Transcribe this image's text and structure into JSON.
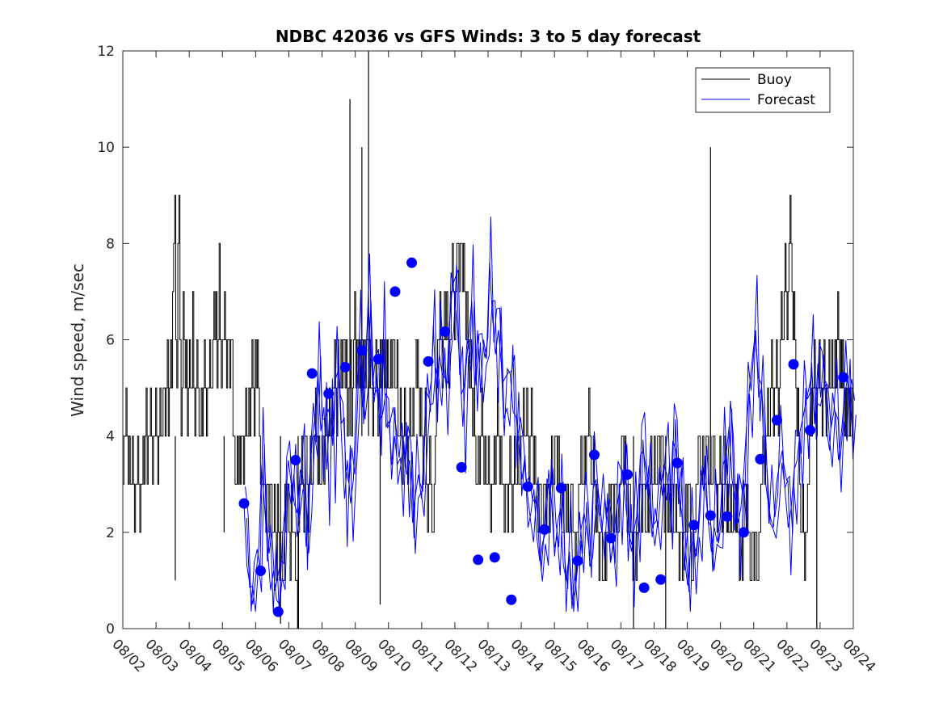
{
  "chart_data": {
    "type": "line",
    "title": "NDBC 42036 vs GFS Winds: 3 to 5 day forecast",
    "xlabel": "",
    "ylabel": "Wind speed, m/sec",
    "xlim": [
      0,
      22
    ],
    "ylim": [
      0,
      12
    ],
    "yticks": [
      0,
      2,
      4,
      6,
      8,
      10,
      12
    ],
    "x_tick_labels": [
      "08/02",
      "08/03",
      "08/04",
      "08/05",
      "08/06",
      "08/07",
      "08/08",
      "08/09",
      "08/10",
      "08/11",
      "08/12",
      "08/13",
      "08/14",
      "08/15",
      "08/16",
      "08/17",
      "08/18",
      "08/19",
      "08/20",
      "08/21",
      "08/22",
      "08/23",
      "08/24"
    ],
    "legend": {
      "position": "top-right",
      "entries": [
        "Buoy",
        "Forecast"
      ]
    },
    "colors": {
      "buoy": "#000000",
      "forecast": "#0000ff",
      "axis": "#262626"
    },
    "buoy_segments": [
      {
        "start": 0.0,
        "values": [
          3,
          4,
          4,
          5,
          4,
          3,
          4,
          3,
          3,
          4,
          3,
          2,
          3,
          3,
          4,
          3,
          2,
          3,
          3,
          4,
          3,
          4,
          5,
          3,
          4,
          4,
          5,
          4,
          3,
          4,
          4,
          5,
          4,
          3,
          4,
          5,
          4,
          4,
          5,
          5,
          4,
          5,
          6,
          4,
          5,
          6,
          5,
          7,
          8,
          9,
          6,
          5,
          8,
          9,
          6,
          4,
          5,
          7,
          6,
          5,
          6,
          4,
          5,
          6,
          5,
          5,
          7,
          5,
          4,
          5,
          6,
          5,
          4,
          4,
          5,
          4,
          5,
          6,
          5,
          4,
          5,
          5,
          6,
          5,
          5,
          6,
          7,
          6,
          7,
          5,
          6,
          8,
          6,
          5,
          6,
          6,
          7,
          6,
          5,
          6,
          6,
          5,
          6,
          6,
          4,
          4,
          3,
          3,
          4,
          3,
          4,
          3,
          4,
          4,
          3,
          4,
          5,
          4,
          4,
          5,
          4,
          5,
          6,
          5,
          4,
          6,
          5,
          6,
          5,
          4,
          3,
          3,
          3,
          3,
          3,
          2,
          3,
          3,
          2,
          3,
          3,
          2,
          2,
          3,
          2,
          1,
          3,
          2,
          1,
          2,
          2,
          1,
          1,
          3,
          2,
          3,
          3,
          2,
          1,
          3,
          2,
          2,
          2,
          1,
          1,
          0,
          2,
          3,
          3,
          4,
          3,
          2,
          4,
          4,
          3,
          2,
          3,
          4,
          3,
          3,
          4,
          4,
          5,
          4,
          3,
          4,
          3,
          3,
          4,
          4,
          3,
          4,
          5,
          4,
          4,
          5,
          4,
          4,
          5,
          5,
          6,
          5,
          4,
          6,
          5,
          5,
          6,
          5,
          6,
          6,
          5,
          6,
          4,
          5,
          5,
          6,
          4,
          5,
          6,
          7,
          5,
          6,
          5,
          6,
          5,
          6,
          6,
          5,
          6,
          5,
          6,
          6,
          5,
          6,
          5,
          5,
          4,
          5,
          5,
          6,
          5,
          4,
          5,
          6,
          5,
          6,
          6,
          5,
          6,
          5,
          6,
          5,
          5,
          6,
          5,
          6,
          6,
          5,
          5,
          6,
          4,
          4,
          5,
          4,
          3,
          4,
          5,
          4,
          4,
          3,
          4,
          5,
          4,
          4,
          5,
          4
        ]
      },
      {
        "start": 8.8,
        "values": [
          6,
          5,
          6,
          5,
          4,
          5,
          4,
          3,
          4,
          5,
          3,
          2,
          3,
          4,
          3,
          2,
          2,
          3,
          4,
          5,
          6,
          6,
          7,
          6,
          5,
          6,
          7,
          6,
          7,
          6,
          5,
          6,
          7,
          8,
          7,
          6,
          7,
          8,
          8,
          7,
          8,
          8,
          7,
          8,
          7,
          6,
          7,
          6,
          5,
          6,
          5,
          4,
          5,
          4,
          3,
          3,
          4,
          3,
          4,
          5,
          4,
          3,
          4,
          3,
          3,
          4,
          3,
          2,
          3,
          3,
          4,
          3,
          4,
          5,
          4,
          3,
          4,
          3,
          3,
          2,
          3,
          3,
          2,
          3,
          4,
          3,
          2,
          3,
          4,
          3,
          3,
          4,
          3,
          3,
          4,
          4,
          5,
          4,
          4,
          5,
          4,
          3,
          4,
          5,
          4,
          3,
          4,
          3,
          3,
          2,
          3,
          3,
          2,
          2,
          3,
          3,
          2,
          3,
          3,
          2,
          3,
          4,
          3,
          3,
          4,
          4,
          3,
          4,
          3,
          3,
          2,
          2,
          3,
          3,
          2,
          3,
          2,
          2,
          3,
          3,
          2,
          2,
          1,
          2,
          2,
          3,
          3,
          4,
          3,
          3,
          4,
          3,
          4,
          4,
          5,
          4,
          3,
          3,
          4,
          3,
          2,
          3,
          2,
          1,
          2,
          2,
          1,
          1,
          2,
          1,
          2,
          2,
          3,
          2,
          3,
          3,
          2,
          3,
          3,
          2,
          2,
          3,
          3,
          4,
          4,
          3,
          4,
          3,
          2,
          3,
          3,
          2,
          2,
          1,
          2,
          2,
          1,
          2,
          2,
          3,
          3,
          2,
          3,
          3,
          2,
          2,
          3,
          2,
          3,
          4,
          3,
          3,
          4,
          3,
          3,
          4,
          4,
          3,
          4,
          4,
          3,
          2,
          3,
          3,
          2,
          3,
          2,
          3,
          3,
          2,
          2,
          3,
          2,
          2,
          1,
          2,
          2,
          1,
          2,
          2,
          3,
          2,
          3,
          3,
          2,
          1,
          1,
          2,
          2,
          3,
          3,
          4,
          4,
          3,
          3,
          4,
          3,
          3,
          4
        ]
      },
      {
        "start": 17.6,
        "values": [
          4,
          3,
          3,
          4,
          3,
          3,
          4,
          4,
          3,
          3,
          2,
          3,
          3,
          4,
          3,
          2,
          3,
          3,
          4,
          3,
          2,
          3,
          2,
          2,
          3,
          2,
          2,
          3,
          3,
          2,
          3,
          2,
          2,
          1,
          2,
          2,
          1,
          2,
          3,
          3,
          2,
          3,
          2,
          2,
          1,
          1,
          2,
          2,
          1,
          2,
          2,
          1,
          1,
          2,
          2,
          3,
          3,
          4,
          4,
          3,
          4,
          4,
          5,
          4,
          4,
          5,
          6,
          5,
          4,
          5,
          5,
          6,
          5,
          4,
          5,
          6,
          7,
          6,
          6,
          7,
          8,
          7,
          6,
          7,
          8,
          9,
          8,
          7,
          6,
          7,
          6,
          5,
          4,
          5,
          4,
          3,
          2,
          2,
          3,
          2,
          1,
          2,
          2,
          3,
          3,
          4,
          5,
          4,
          5,
          5,
          6,
          5,
          4,
          5,
          5,
          6,
          5,
          5,
          4,
          5,
          6,
          5,
          4,
          5,
          5,
          6,
          5,
          5,
          6,
          5,
          5,
          6,
          5,
          6,
          7,
          6,
          5,
          6,
          5,
          6,
          5,
          4,
          5,
          4,
          5,
          5,
          4,
          5,
          5,
          4
        ]
      }
    ],
    "buoy_spikes": [
      {
        "x": 1.58,
        "y": 1.0
      },
      {
        "x": 3.05,
        "y": 2.0
      },
      {
        "x": 4.75,
        "y": 0.1
      },
      {
        "x": 5.28,
        "y": 0.0
      },
      {
        "x": 6.84,
        "y": 11.0
      },
      {
        "x": 7.2,
        "y": 10.0
      },
      {
        "x": 7.4,
        "y": 12.0
      },
      {
        "x": 7.75,
        "y": 0.5
      },
      {
        "x": 15.38,
        "y": 0.0
      },
      {
        "x": 16.35,
        "y": 0.0
      },
      {
        "x": 17.7,
        "y": 10.0
      },
      {
        "x": 20.9,
        "y": 0.0
      }
    ],
    "forecast_runs": [
      {
        "x0": 3.65,
        "values": [
          2.6,
          1.3,
          0.9,
          0.5,
          1.1,
          1.7,
          3.4,
          2.5,
          1.6,
          0.8,
          1.2,
          0.6,
          0.5,
          1.9,
          2.6,
          3.5,
          3.0,
          2.6,
          2.4,
          3.3,
          3.1,
          1.7,
          3.0,
          3.9,
          4.4,
          5.3,
          4.1,
          4.6,
          3.3,
          4.6,
          3.8,
          5.2,
          5.4,
          3.9,
          2.7,
          3.5,
          2.6,
          3.1,
          4.9,
          5.8,
          4.6,
          5.4,
          6.8,
          5.6,
          4.7,
          5.3,
          4.0,
          6.0,
          4.2,
          4.3,
          3.4,
          4.6,
          3.0,
          3.4,
          3.9,
          3.2,
          3.5,
          2.2,
          2.8,
          3.2,
          2.7,
          3.8,
          5.3,
          4.5,
          6.3,
          4.8,
          5.7,
          5.3,
          5.2,
          5.1,
          7.4,
          7.0,
          6.4,
          5.4,
          4.2,
          5.4,
          6.1,
          6.8,
          5.0,
          6.2,
          4.9,
          6.0,
          5.6,
          7.6,
          6.5,
          5.7,
          6.2,
          5.5,
          4.0,
          5.4,
          5.3,
          4.5,
          4.4,
          3.8,
          3.1,
          3.6,
          2.1,
          2.4,
          2.9,
          1.9,
          1.4,
          1.8,
          2.0,
          3.3,
          2.6,
          1.5,
          2.2,
          2.5,
          1.3,
          1.0,
          1.6,
          0.6,
          0.8,
          1.4,
          2.1,
          2.4,
          2.0,
          1.5,
          2.9,
          3.1,
          2.4,
          2.0,
          2.7,
          2.2,
          1.4,
          1.9,
          2.5,
          2.9,
          3.3,
          2.6,
          2.0,
          1.6,
          2.1,
          2.4,
          3.6,
          3.7,
          3.3,
          2.8,
          1.9,
          2.5,
          2.1,
          3.0,
          3.4,
          3.2,
          2.6,
          3.9,
          3.7,
          2.8,
          2.4,
          1.4,
          0.9,
          1.7,
          1.8,
          1.5,
          2.3,
          3.4,
          2.9,
          2.2,
          1.6,
          2.1,
          1.8,
          2.3,
          3.4,
          3.6,
          4.2,
          3.1,
          2.7,
          2.2,
          2.5,
          3.3,
          4.3,
          5.1,
          5.7,
          6.2,
          4.8,
          5.0,
          3.2,
          2.7,
          2.3,
          2.1,
          3.0,
          3.4,
          3.7,
          2.8,
          2.1,
          2.5,
          3.3,
          3.5,
          4.1,
          4.4,
          4.7,
          5.0,
          5.3,
          4.3,
          5.5,
          4.8,
          5.7,
          4.1,
          3.7,
          4.9,
          4.4,
          3.5,
          4.1,
          4.8,
          5.2,
          4.6,
          3.9
        ]
      }
    ],
    "forecast_scatter": [
      {
        "x": 3.65,
        "y": 2.6
      },
      {
        "x": 4.15,
        "y": 1.2
      },
      {
        "x": 4.68,
        "y": 0.35
      },
      {
        "x": 5.2,
        "y": 3.5
      },
      {
        "x": 5.7,
        "y": 5.3
      },
      {
        "x": 6.2,
        "y": 4.88
      },
      {
        "x": 6.7,
        "y": 5.43
      },
      {
        "x": 7.2,
        "y": 5.78
      },
      {
        "x": 7.7,
        "y": 5.6
      },
      {
        "x": 8.2,
        "y": 7.0
      },
      {
        "x": 8.7,
        "y": 7.6
      },
      {
        "x": 9.2,
        "y": 5.55
      },
      {
        "x": 9.7,
        "y": 6.17
      },
      {
        "x": 10.2,
        "y": 3.35
      },
      {
        "x": 10.7,
        "y": 1.43
      },
      {
        "x": 11.2,
        "y": 1.48
      },
      {
        "x": 11.7,
        "y": 0.6
      },
      {
        "x": 12.2,
        "y": 2.95
      },
      {
        "x": 12.7,
        "y": 2.06
      },
      {
        "x": 13.2,
        "y": 2.92
      },
      {
        "x": 13.7,
        "y": 1.41
      },
      {
        "x": 14.2,
        "y": 3.61
      },
      {
        "x": 14.7,
        "y": 1.88
      },
      {
        "x": 15.2,
        "y": 3.2
      },
      {
        "x": 15.7,
        "y": 0.85
      },
      {
        "x": 16.2,
        "y": 1.02
      },
      {
        "x": 16.7,
        "y": 3.44
      },
      {
        "x": 17.2,
        "y": 2.15
      },
      {
        "x": 17.7,
        "y": 2.35
      },
      {
        "x": 18.2,
        "y": 2.33
      },
      {
        "x": 18.7,
        "y": 2.0
      },
      {
        "x": 19.2,
        "y": 3.52
      },
      {
        "x": 19.7,
        "y": 4.33
      },
      {
        "x": 20.2,
        "y": 5.49
      },
      {
        "x": 20.7,
        "y": 4.12
      },
      {
        "x": 21.7,
        "y": 5.22
      }
    ]
  }
}
